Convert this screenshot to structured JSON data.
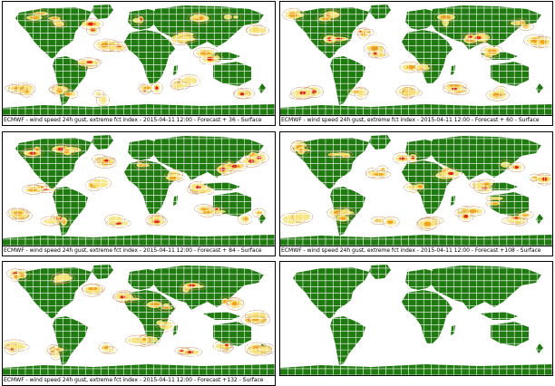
{
  "colors": {
    "land": "#1f7a0f",
    "grid": "#ffffff",
    "ocean": "#ffffff",
    "gust_low": "#f7e37a",
    "gust_mid": "#f3a21c",
    "gust_high": "#e0201b",
    "contour": "#c98a52"
  },
  "panels": [
    {
      "caption": "ECMWF - wind speed 24h gust, extreme fct index - 2015-04-11 12:00 - Forecast + 36 - Surface",
      "has_gusts": true
    },
    {
      "caption": "ECMWF - wind speed 24h gust, extreme fct index - 2015-04-11 12:00 - Forecast + 60 - Surface",
      "has_gusts": true
    },
    {
      "caption": "ECMWF - wind speed 24h gust, extreme fct index - 2015-04-11 12:00 - Forecast + 84 - Surface",
      "has_gusts": true
    },
    {
      "caption": "ECMWF - wind speed 24h gust, extreme fct index - 2015-04-11 12:00 - Forecast +108 - Surface",
      "has_gusts": true
    },
    {
      "caption": "ECMWF - wind speed 24h gust, extreme fct index - 2015-04-11 12:00 - Forecast +132 - Surface",
      "has_gusts": true
    },
    {
      "caption": "",
      "has_gusts": false
    }
  ]
}
